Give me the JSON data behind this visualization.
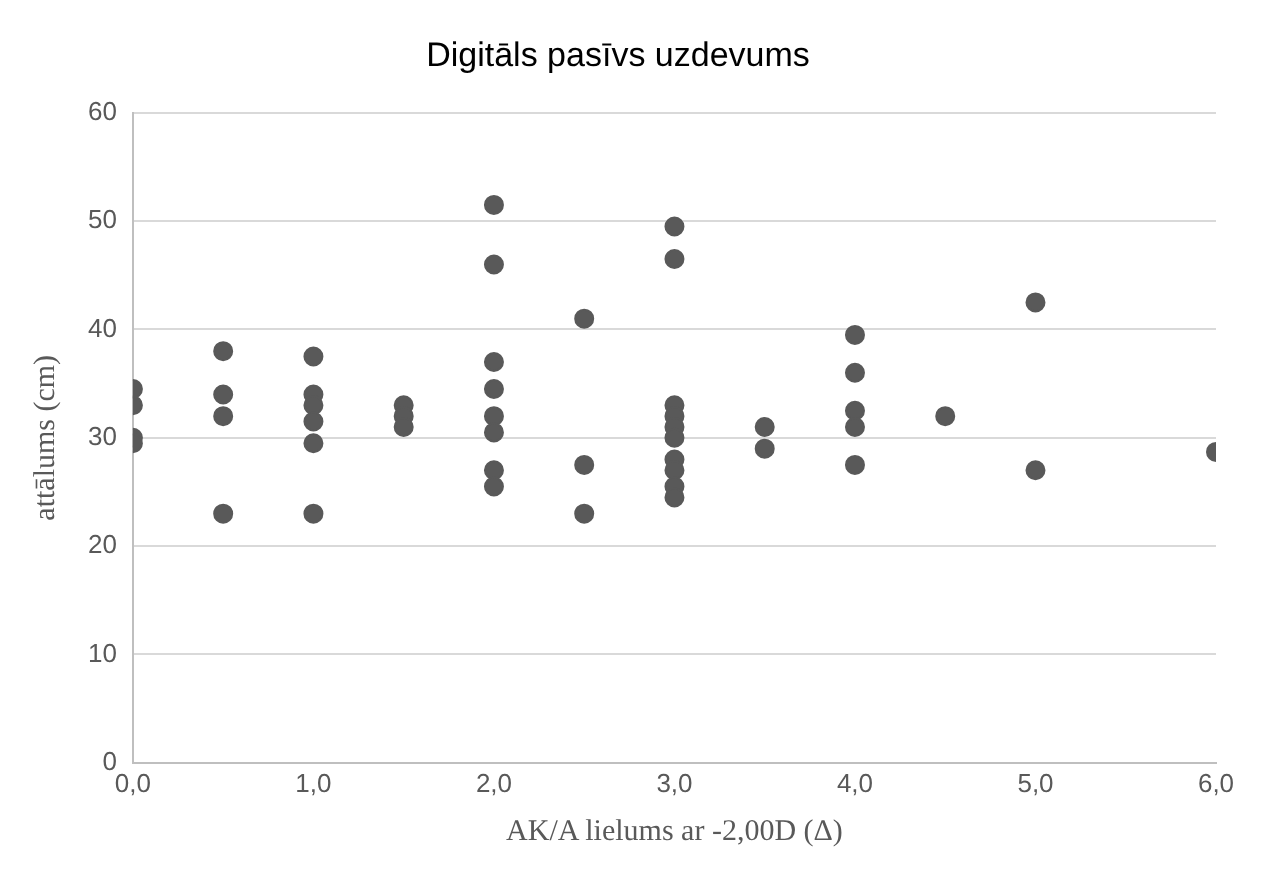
{
  "chart_data": {
    "type": "scatter",
    "title": "Digitāls pasīvs uzdevums",
    "xlabel": "AK/A lielums ar -2,00D (Δ)",
    "ylabel": "attālums (cm)",
    "xlim": [
      0,
      6
    ],
    "xticks": [
      {
        "value": 0,
        "label": "0,0"
      },
      {
        "value": 1,
        "label": "1,0"
      },
      {
        "value": 2,
        "label": "2,0"
      },
      {
        "value": 3,
        "label": "3,0"
      },
      {
        "value": 4,
        "label": "4,0"
      },
      {
        "value": 5,
        "label": "5,0"
      },
      {
        "value": 6,
        "label": "6,0"
      }
    ],
    "ylim": [
      0,
      60
    ],
    "yticks": [
      0,
      10,
      20,
      30,
      40,
      50,
      60
    ],
    "grid": "y",
    "legend": false,
    "marker": "circle",
    "series": [
      {
        "color": "#595959",
        "x": [
          0,
          0,
          0,
          0,
          0.5,
          0.5,
          0.5,
          0.5,
          1,
          1,
          1,
          1,
          1,
          1,
          1.5,
          1.5,
          1.5,
          2,
          2,
          2,
          2,
          2,
          2,
          2,
          2,
          2.5,
          2.5,
          2.5,
          3,
          3,
          3,
          3,
          3,
          3,
          3,
          3,
          3,
          3,
          3.5,
          3.5,
          4,
          4,
          4,
          4,
          4,
          4.5,
          5,
          5,
          6
        ],
        "values": [
          34.5,
          33,
          30,
          29.5,
          38,
          34,
          32,
          23,
          37.5,
          34,
          33,
          31.5,
          29.5,
          23,
          33,
          32,
          31,
          51.5,
          46,
          37,
          34.5,
          32,
          30.5,
          27,
          25.5,
          41,
          27.5,
          23,
          49.5,
          46.5,
          33,
          32,
          31,
          30,
          28,
          27,
          25.5,
          24.5,
          31,
          29,
          39.5,
          36,
          32.5,
          31,
          27.5,
          32,
          42.5,
          27,
          28.7
        ]
      }
    ]
  }
}
